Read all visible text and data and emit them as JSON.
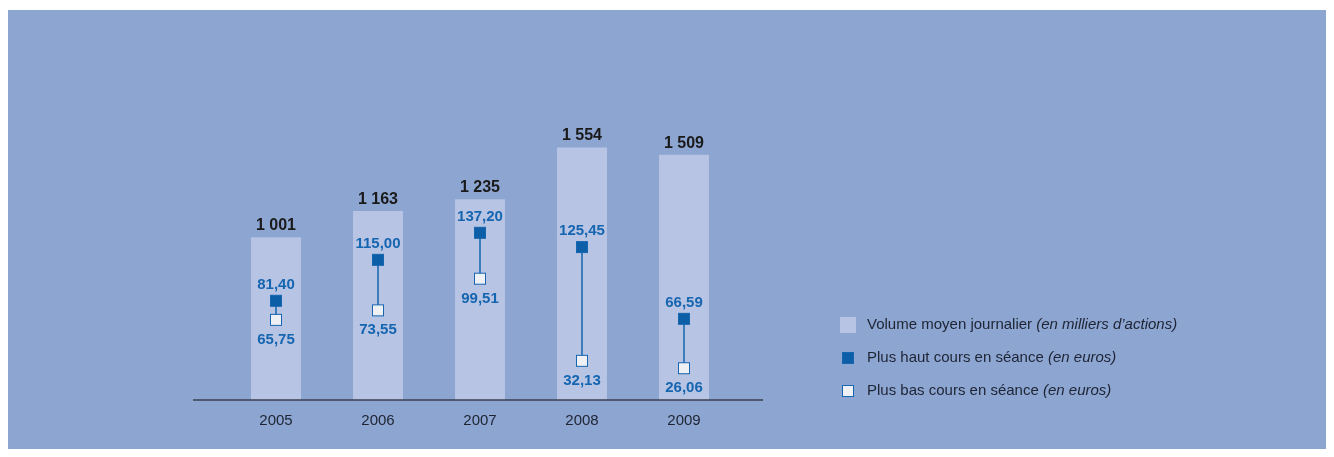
{
  "chart_data": {
    "type": "bar",
    "categories": [
      "2005",
      "2006",
      "2007",
      "2008",
      "2009"
    ],
    "series": [
      {
        "name": "Volume moyen journalier (en milliers d’actions)",
        "color": "#b8c4e3",
        "values": [
          1001,
          1163,
          1235,
          1554,
          1509
        ],
        "value_labels": [
          "1 001",
          "1 163",
          "1 235",
          "1 554",
          "1 509"
        ]
      },
      {
        "name": "Plus haut cours en séance (en euros)",
        "type": "scatter",
        "axis": "y2",
        "marker": "square",
        "color": "#0c5fa6",
        "values": [
          81.4,
          115.0,
          137.2,
          125.45,
          66.59
        ],
        "value_labels": [
          "81,40",
          "115,00",
          "137,20",
          "125,45",
          "66,59"
        ]
      },
      {
        "name": "Plus bas cours en séance (en euros)",
        "type": "scatter",
        "axis": "y2",
        "marker": "square",
        "color": "#eef0f4",
        "values": [
          65.75,
          73.55,
          99.51,
          32.13,
          26.06
        ],
        "value_labels": [
          "65,75",
          "73,55",
          "99,51",
          "32,13",
          "26,06"
        ]
      }
    ],
    "ylim": [
      0,
      2400
    ],
    "y2lim": [
      0,
      320
    ],
    "tick_labels": "x",
    "legend": "right"
  }
}
